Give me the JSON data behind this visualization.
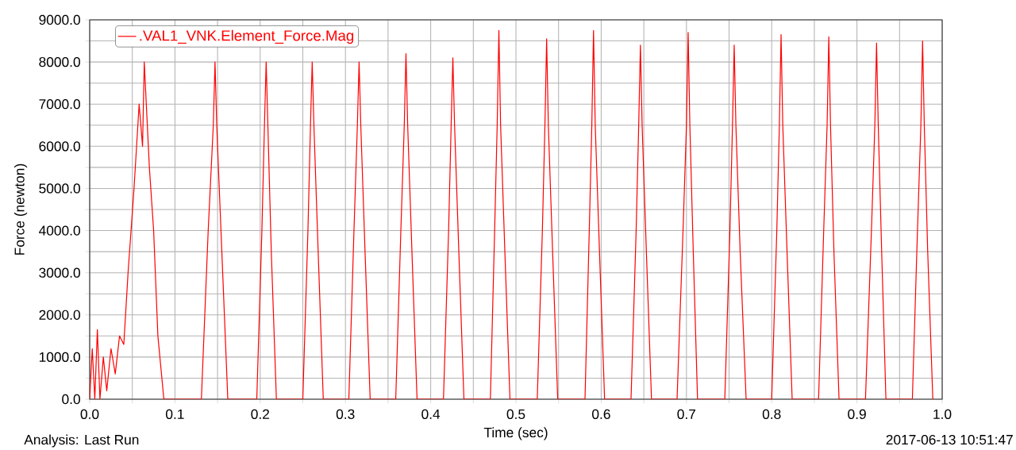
{
  "chart_data": {
    "type": "line",
    "xlabel": "Time (sec)",
    "ylabel": "Force (newton)",
    "annotations": [
      "Analysis:  Last Run",
      "2017-06-13 10:51:47"
    ],
    "legend": "top left",
    "grid": true,
    "marker": "none",
    "line_style": "solid",
    "xlim": [
      0,
      1
    ],
    "ylim": [
      0,
      9000
    ],
    "xticks": [
      {
        "value": 0,
        "label": "0.0"
      },
      {
        "value": 0.05,
        "label": null
      },
      {
        "value": 0.1,
        "label": "0.1"
      },
      {
        "value": 0.15,
        "label": null
      },
      {
        "value": 0.2,
        "label": "0.2"
      },
      {
        "value": 0.25,
        "label": null
      },
      {
        "value": 0.3,
        "label": "0.3"
      },
      {
        "value": 0.35,
        "label": null
      },
      {
        "value": 0.4,
        "label": "0.4"
      },
      {
        "value": 0.45,
        "label": null
      },
      {
        "value": 0.5,
        "label": "0.5"
      },
      {
        "value": 0.55,
        "label": null
      },
      {
        "value": 0.6,
        "label": "0.6"
      },
      {
        "value": 0.65,
        "label": null
      },
      {
        "value": 0.7,
        "label": "0.7"
      },
      {
        "value": 0.75,
        "label": null
      },
      {
        "value": 0.8,
        "label": "0.8"
      },
      {
        "value": 0.85,
        "label": null
      },
      {
        "value": 0.9,
        "label": "0.9"
      },
      {
        "value": 0.95,
        "label": null
      },
      {
        "value": 1,
        "label": "1.0"
      }
    ],
    "yticks": [
      {
        "value": 0,
        "label": "0.0"
      },
      {
        "value": 500,
        "label": null
      },
      {
        "value": 1000,
        "label": "1000.0"
      },
      {
        "value": 1500,
        "label": null
      },
      {
        "value": 2000,
        "label": "2000.0"
      },
      {
        "value": 2500,
        "label": null
      },
      {
        "value": 3000,
        "label": "3000.0"
      },
      {
        "value": 3500,
        "label": null
      },
      {
        "value": 4000,
        "label": "4000.0"
      },
      {
        "value": 4500,
        "label": null
      },
      {
        "value": 5000,
        "label": "5000.0"
      },
      {
        "value": 5500,
        "label": null
      },
      {
        "value": 6000,
        "label": "6000.0"
      },
      {
        "value": 6500,
        "label": null
      },
      {
        "value": 7000,
        "label": "7000.0"
      },
      {
        "value": 7500,
        "label": null
      },
      {
        "value": 8000,
        "label": "8000.0"
      },
      {
        "value": 8500,
        "label": null
      },
      {
        "value": 9000,
        "label": "9000.0"
      }
    ],
    "series": [
      {
        "name": ".VAL1_VNK.Element_Force.Mag",
        "color": "#ff0000",
        "x": [
          0,
          0.003,
          0.006,
          0.009,
          0.012,
          0.016,
          0.02,
          0.025,
          0.03,
          0.035,
          0.04,
          0.045,
          0.052,
          0.058,
          0.062,
          0.064,
          0.07,
          0.075,
          0.08,
          0.087,
          0.131,
          0.139,
          0.145,
          0.147,
          0.149,
          0.155,
          0.162,
          0.196,
          0.202,
          0.205,
          0.207,
          0.209,
          0.213,
          0.219,
          0.25,
          0.256,
          0.259,
          0.261,
          0.263,
          0.268,
          0.274,
          0.304,
          0.31,
          0.314,
          0.316,
          0.318,
          0.323,
          0.329,
          0.359,
          0.365,
          0.369,
          0.371,
          0.373,
          0.378,
          0.384,
          0.415,
          0.421,
          0.424,
          0.426,
          0.428,
          0.433,
          0.439,
          0.47,
          0.475,
          0.478,
          0.48,
          0.482,
          0.487,
          0.493,
          0.525,
          0.531,
          0.534,
          0.536,
          0.538,
          0.543,
          0.549,
          0.581,
          0.586,
          0.589,
          0.591,
          0.593,
          0.598,
          0.604,
          0.635,
          0.641,
          0.644,
          0.646,
          0.648,
          0.653,
          0.659,
          0.689,
          0.696,
          0.7,
          0.702,
          0.704,
          0.708,
          0.713,
          0.745,
          0.751,
          0.754,
          0.756,
          0.758,
          0.763,
          0.77,
          0.8,
          0.806,
          0.809,
          0.811,
          0.813,
          0.818,
          0.824,
          0.855,
          0.861,
          0.865,
          0.867,
          0.869,
          0.873,
          0.879,
          0.91,
          0.917,
          0.921,
          0.923,
          0.925,
          0.929,
          0.934,
          0.965,
          0.971,
          0.975,
          0.977,
          0.979,
          0.983,
          0.989
        ],
        "values": [
          0,
          1200,
          0,
          1650,
          0,
          1000,
          200,
          1200,
          600,
          1500,
          1300,
          3000,
          5000,
          7000,
          6000,
          8000,
          5500,
          4000,
          1500,
          0,
          0,
          4000,
          6500,
          8000,
          6500,
          3500,
          0,
          0,
          4000,
          6500,
          8000,
          6500,
          3500,
          0,
          0,
          4000,
          6500,
          8000,
          6500,
          3500,
          0,
          0,
          4000,
          6500,
          8000,
          6500,
          3500,
          0,
          0,
          4000,
          6500,
          8200,
          6500,
          3500,
          0,
          0,
          4000,
          6500,
          8100,
          6500,
          3500,
          0,
          0,
          4000,
          6500,
          8750,
          6500,
          3500,
          0,
          0,
          4000,
          6500,
          8550,
          6500,
          3500,
          0,
          0,
          4000,
          6500,
          8750,
          6500,
          3500,
          0,
          0,
          4000,
          6500,
          8400,
          6500,
          3500,
          0,
          0,
          4000,
          6500,
          8700,
          6500,
          3500,
          0,
          0,
          4000,
          6500,
          8400,
          6500,
          3500,
          0,
          0,
          4000,
          6500,
          8650,
          6500,
          3500,
          0,
          0,
          4000,
          6500,
          8600,
          6500,
          3500,
          0,
          0,
          4000,
          6500,
          8450,
          6500,
          3500,
          0,
          0,
          4000,
          6500,
          8500,
          6500,
          3500,
          0
        ]
      }
    ]
  }
}
